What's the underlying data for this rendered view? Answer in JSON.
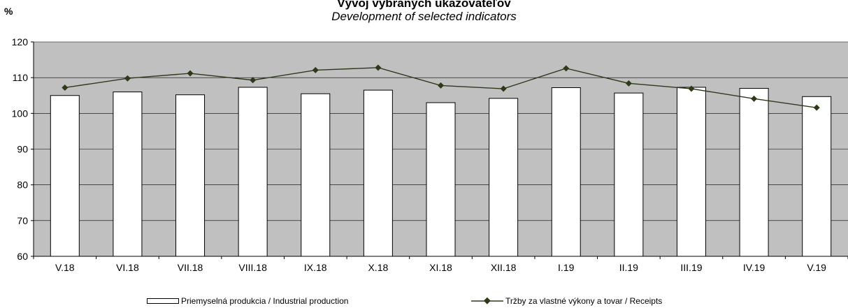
{
  "chart_data": {
    "type": "bar",
    "title": "Vývoj vybraných ukazovateľov",
    "subtitle": "Development of selected indicators",
    "ylabel": "%",
    "ylim": [
      60,
      120
    ],
    "yticks": [
      60,
      70,
      80,
      90,
      100,
      110,
      120
    ],
    "grid": true,
    "legend_position": "bottom",
    "categories": [
      "V.18",
      "VI.18",
      "VII.18",
      "VIII.18",
      "IX.18",
      "X.18",
      "XI.18",
      "XII.18",
      "I.19",
      "II.19",
      "III.19",
      "IV.19",
      "V.19"
    ],
    "series": [
      {
        "name": "Priemyselná produkcia / Industrial production",
        "type": "bar",
        "color": "#ffffff",
        "values": [
          105.0,
          106.0,
          105.2,
          107.3,
          105.5,
          106.5,
          103.0,
          104.2,
          107.2,
          105.7,
          107.3,
          107.0,
          104.7
        ]
      },
      {
        "name": "Tržby za vlastné výkony a tovar / Receipts",
        "type": "line",
        "color": "#2d3a1a",
        "values": [
          107.2,
          109.8,
          111.2,
          109.3,
          112.1,
          112.8,
          107.8,
          106.9,
          112.6,
          108.4,
          106.9,
          104.1,
          101.6
        ]
      }
    ]
  },
  "colors": {
    "plot_background": "#c0c0c0",
    "line": "#2d3a1a"
  }
}
